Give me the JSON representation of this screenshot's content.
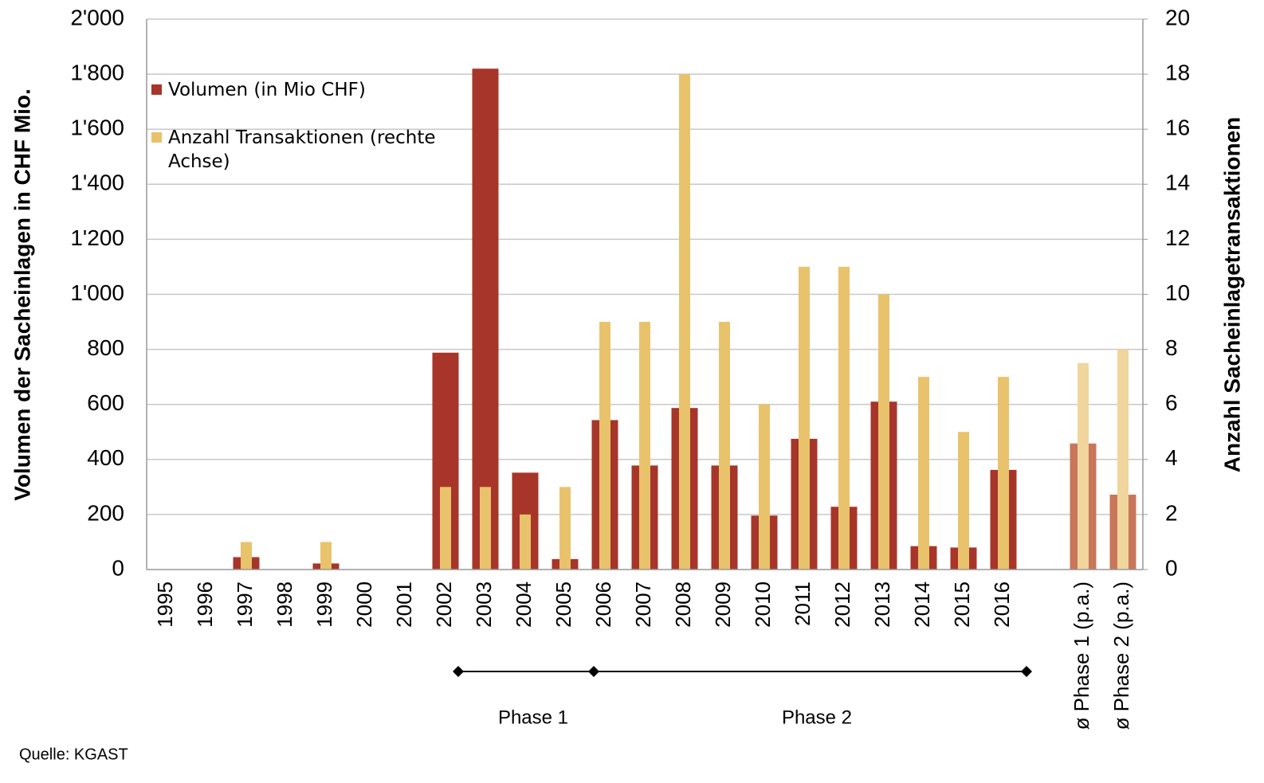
{
  "chart_data": {
    "type": "bar",
    "categories": [
      "1995",
      "1996",
      "1997",
      "1998",
      "1999",
      "2000",
      "2001",
      "2002",
      "2003",
      "2004",
      "2005",
      "2006",
      "2007",
      "2008",
      "2009",
      "2010",
      "2011",
      "2012",
      "2013",
      "2014",
      "2015",
      "2016",
      null,
      "ø Phase 1 (p.a.)",
      "ø Phase 2 (p.a.)"
    ],
    "series": [
      {
        "name": "Volumen (in Mio CHF)",
        "color": "#a7352a",
        "colors": [
          "#a7352a",
          "#a7352a",
          "#a7352a",
          "#a7352a",
          "#a7352a",
          "#a7352a",
          "#a7352a",
          "#a7352a",
          "#a7352a",
          "#a7352a",
          "#a7352a",
          "#a7352a",
          "#a7352a",
          "#a7352a",
          "#a7352a",
          "#a7352a",
          "#a7352a",
          "#a7352a",
          "#a7352a",
          "#a7352a",
          "#a7352a",
          "#a7352a",
          "#a7352a",
          "#c8765a",
          "#c8765a"
        ],
        "values": [
          0,
          0,
          45,
          0,
          22,
          0,
          0,
          788,
          1820,
          352,
          38,
          543,
          378,
          587,
          378,
          196,
          475,
          228,
          610,
          85,
          80,
          362,
          null,
          458,
          272
        ]
      },
      {
        "name": "Anzahl Transaktionen (rechte Achse)",
        "color": "#e9c26c",
        "axis": "y2",
        "colors": [
          "#e9c26c",
          "#e9c26c",
          "#e9c26c",
          "#e9c26c",
          "#e9c26c",
          "#e9c26c",
          "#e9c26c",
          "#e9c26c",
          "#e9c26c",
          "#e9c26c",
          "#e9c26c",
          "#e9c26c",
          "#e9c26c",
          "#e9c26c",
          "#e9c26c",
          "#e9c26c",
          "#e9c26c",
          "#e9c26c",
          "#e9c26c",
          "#e9c26c",
          "#e9c26c",
          "#e9c26c",
          "#e9c26c",
          "#f0d59c",
          "#f0d59c"
        ],
        "values": [
          0,
          0,
          1,
          0,
          1,
          0,
          0,
          3,
          3,
          2,
          3,
          9,
          9,
          18,
          9,
          6,
          11,
          11,
          10,
          7,
          5,
          7,
          null,
          7.5,
          8
        ]
      }
    ],
    "ylabel": "Volumen der Sacheinlagen in CHF Mio.",
    "y2label": "Anzahl Sacheinlagetransaktionen",
    "ylim": [
      0,
      2000
    ],
    "yticks": [
      0,
      200,
      400,
      600,
      800,
      {
        "value": 1000,
        "label": "1'000"
      },
      {
        "value": 1200,
        "label": "1'200"
      },
      {
        "value": 1400,
        "label": "1'400"
      },
      {
        "value": 1600,
        "label": "1'600"
      },
      {
        "value": 1800,
        "label": "1'800"
      },
      {
        "value": 2000,
        "label": "2'000"
      }
    ],
    "y2lim": [
      0,
      20
    ],
    "y2ticks": [
      0,
      2,
      4,
      6,
      8,
      10,
      12,
      14,
      16,
      18,
      20
    ],
    "grid": true,
    "legend": "top-left",
    "annotations": [
      "Phase 1",
      "Phase 2"
    ],
    "source": "Quelle: KGAST"
  }
}
